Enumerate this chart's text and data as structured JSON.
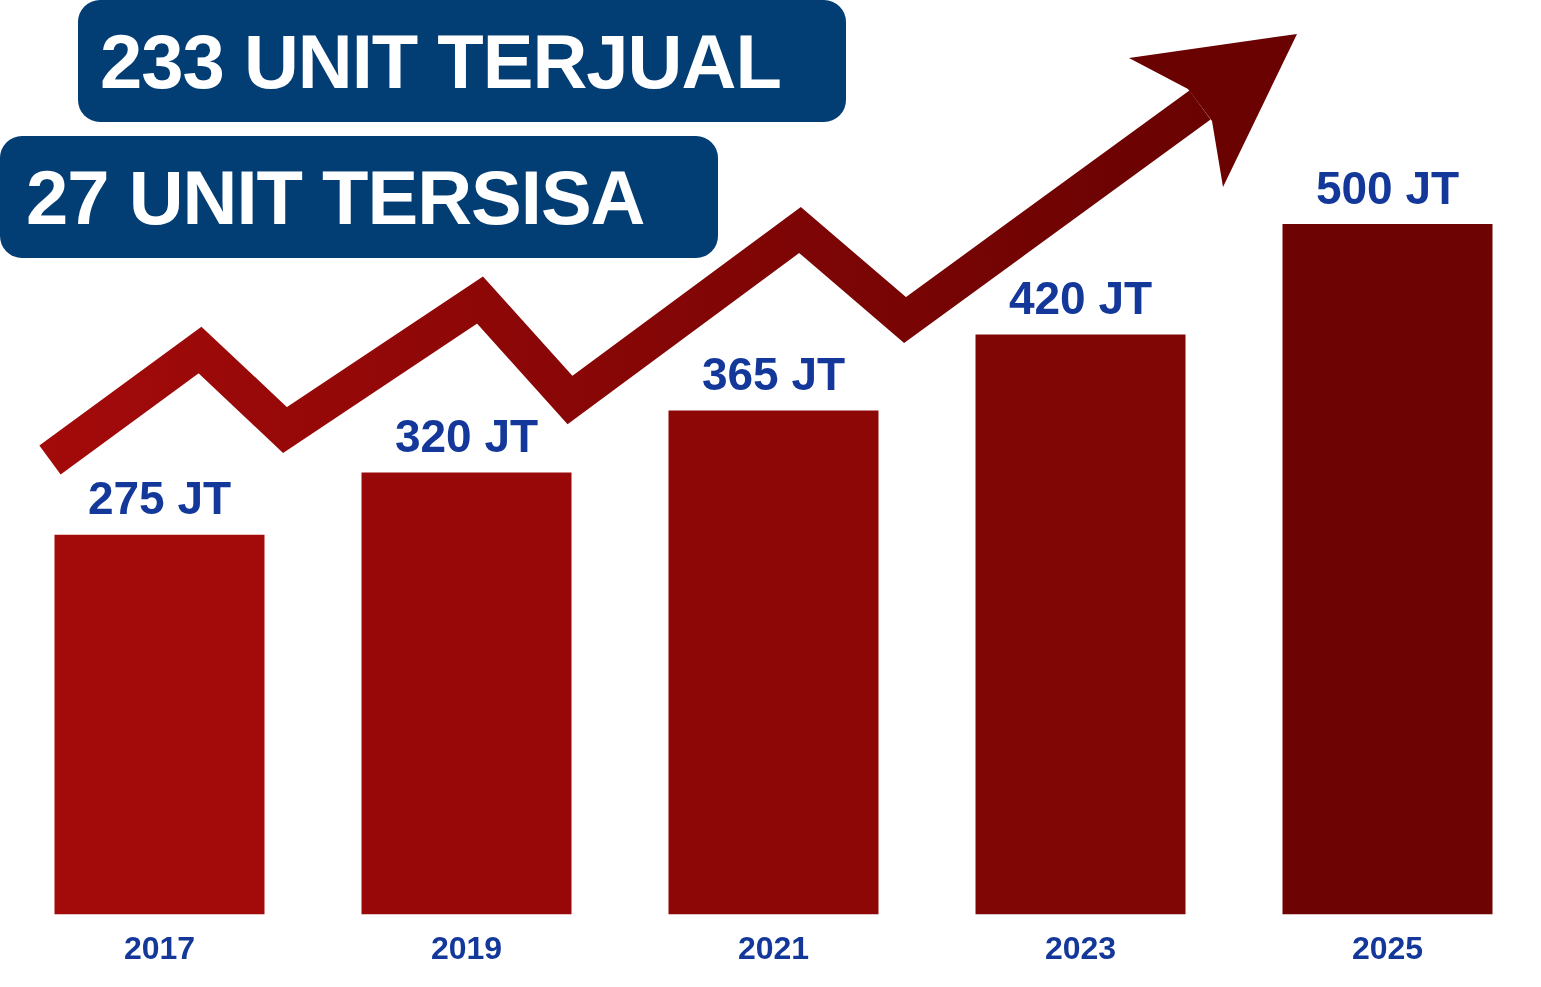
{
  "chart_data": {
    "type": "bar",
    "title": "233 UNIT TERJUAL",
    "subtitle": "27 UNIT TERSISA",
    "categories": [
      "2017",
      "2019",
      "2021",
      "2023",
      "2025"
    ],
    "values": [
      275,
      320,
      365,
      420,
      500
    ],
    "value_labels": [
      "275 JT",
      "320 JT",
      "365 JT",
      "420 JT",
      "500 JT"
    ],
    "colors": [
      "#a30a0a",
      "#990808",
      "#8e0707",
      "#800505",
      "#6e0303"
    ]
  }
}
